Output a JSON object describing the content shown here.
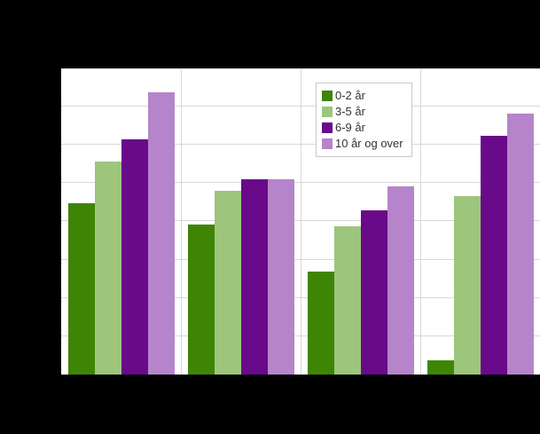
{
  "chart_data": {
    "type": "bar",
    "title": "",
    "categories": [
      "",
      "",
      "",
      ""
    ],
    "series": [
      {
        "name": "0-2 år",
        "color": "#3e8505",
        "values": [
          44.7,
          39.1,
          26.8,
          3.8
        ]
      },
      {
        "name": "3-5 år",
        "color": "#9dc57c",
        "values": [
          55.7,
          48.0,
          38.7,
          46.7
        ]
      },
      {
        "name": "6-9 år",
        "color": "#690a8a",
        "values": [
          61.4,
          51.1,
          42.9,
          62.4
        ]
      },
      {
        "name": "10 år og over",
        "color": "#b584ca",
        "values": [
          73.7,
          50.9,
          49.2,
          68.2
        ]
      }
    ],
    "ylim": [
      0,
      80
    ],
    "y_tick_interval": 10,
    "grid": true,
    "axis_tick_labels_visible": false,
    "legend_position": "inside-top-center"
  },
  "colors": {
    "page_background": "#000000",
    "plot_background": "#ffffff",
    "gridline": "#d8d8d8",
    "legend_border": "#c8c8c8",
    "legend_text": "#333333"
  }
}
